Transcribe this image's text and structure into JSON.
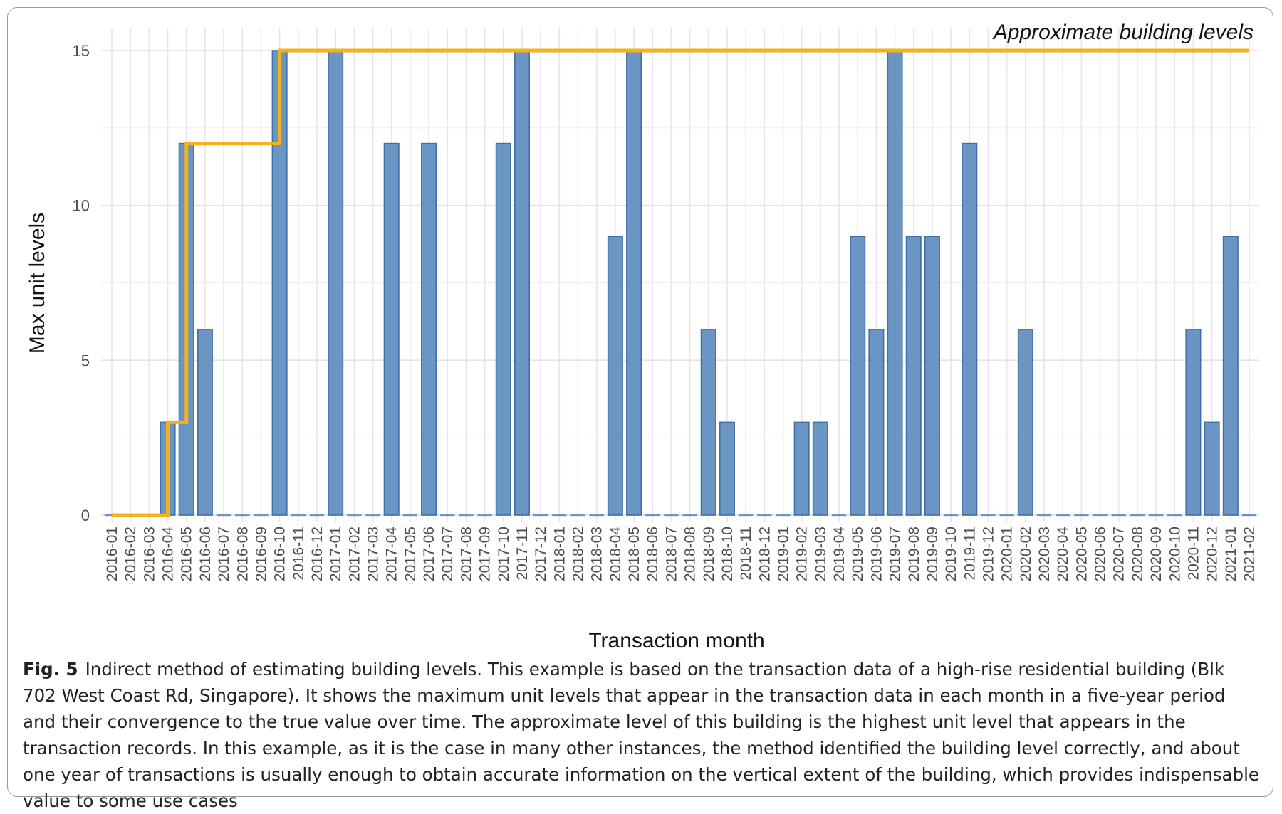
{
  "chart_data": {
    "type": "bar",
    "annotation": "Approximate building levels",
    "xlabel": "Transaction month",
    "ylabel": "Max unit levels",
    "ylim": [
      0,
      15
    ],
    "yticks": [
      0,
      5,
      10,
      15
    ],
    "grid": true,
    "categories": [
      "2016-01",
      "2016-02",
      "2016-03",
      "2016-04",
      "2016-05",
      "2016-06",
      "2016-07",
      "2016-08",
      "2016-09",
      "2016-10",
      "2016-11",
      "2016-12",
      "2017-01",
      "2017-02",
      "2017-03",
      "2017-04",
      "2017-05",
      "2017-06",
      "2017-07",
      "2017-08",
      "2017-09",
      "2017-10",
      "2017-11",
      "2017-12",
      "2018-01",
      "2018-02",
      "2018-03",
      "2018-04",
      "2018-05",
      "2018-06",
      "2018-07",
      "2018-08",
      "2018-09",
      "2018-10",
      "2018-11",
      "2018-12",
      "2019-01",
      "2019-02",
      "2019-03",
      "2019-04",
      "2019-05",
      "2019-06",
      "2019-07",
      "2019-08",
      "2019-09",
      "2019-10",
      "2019-11",
      "2019-12",
      "2020-01",
      "2020-02",
      "2020-03",
      "2020-04",
      "2020-05",
      "2020-06",
      "2020-07",
      "2020-08",
      "2020-09",
      "2020-10",
      "2020-11",
      "2020-12",
      "2021-01",
      "2021-02"
    ],
    "series": [
      {
        "type": "bar",
        "color": "#6b96c3",
        "values": [
          0,
          0,
          0,
          3,
          12,
          6,
          0,
          0,
          0,
          15,
          0,
          0,
          15,
          0,
          0,
          12,
          0,
          12,
          0,
          0,
          0,
          12,
          15,
          0,
          0,
          0,
          0,
          9,
          15,
          0,
          0,
          0,
          6,
          3,
          0,
          0,
          0,
          3,
          3,
          0,
          9,
          6,
          15,
          9,
          9,
          0,
          12,
          0,
          0,
          6,
          0,
          0,
          0,
          0,
          0,
          0,
          0,
          0,
          6,
          3,
          9,
          0
        ]
      },
      {
        "type": "step",
        "color": "#f5b01a",
        "values": [
          0,
          0,
          0,
          3,
          12,
          12,
          12,
          12,
          12,
          15,
          15,
          15,
          15,
          15,
          15,
          15,
          15,
          15,
          15,
          15,
          15,
          15,
          15,
          15,
          15,
          15,
          15,
          15,
          15,
          15,
          15,
          15,
          15,
          15,
          15,
          15,
          15,
          15,
          15,
          15,
          15,
          15,
          15,
          15,
          15,
          15,
          15,
          15,
          15,
          15,
          15,
          15,
          15,
          15,
          15,
          15,
          15,
          15,
          15,
          15,
          15,
          15
        ]
      }
    ]
  },
  "caption": {
    "label": "Fig. 5",
    "text": "Indirect method of estimating building levels. This example is based on the transaction data of a high-rise residential building (Blk 702 West Coast Rd, Singapore). It shows the maximum unit levels that appear in the transaction data in each month in a five-year period and their convergence to the true value over time. The approximate level of this building is the highest unit level that appears in the transaction records. In this example, as it is the case in many other instances, the method identified the building level correctly, and about one year of transactions is usually enough to obtain accurate information on the vertical extent of the building, which provides indispensable value to some use cases"
  }
}
